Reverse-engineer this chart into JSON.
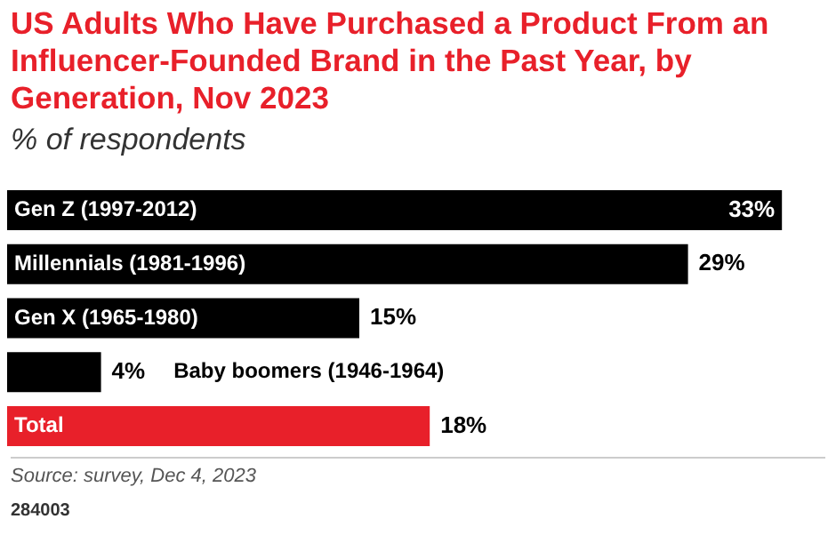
{
  "chart_data": {
    "type": "bar",
    "orientation": "horizontal",
    "title": "US Adults Who Have Purchased a Product From an Influencer-Founded Brand in the Past Year, by Generation, Nov 2023",
    "subtitle": "% of respondents",
    "categories": [
      "Gen Z (1997-2012)",
      "Millennials (1981-1996)",
      "Gen X (1965-1980)",
      "Baby boomers (1946-1964)",
      "Total"
    ],
    "values": [
      33,
      29,
      15,
      4,
      18
    ],
    "colors": [
      "#000000",
      "#000000",
      "#000000",
      "#000000",
      "#e8202a"
    ],
    "value_labels": [
      "33%",
      "29%",
      "15%",
      "4%",
      "18%"
    ],
    "annotations": [
      "Source: survey, Dec 4, 2023",
      "284003"
    ],
    "legend": false,
    "tick_labels": false
  }
}
